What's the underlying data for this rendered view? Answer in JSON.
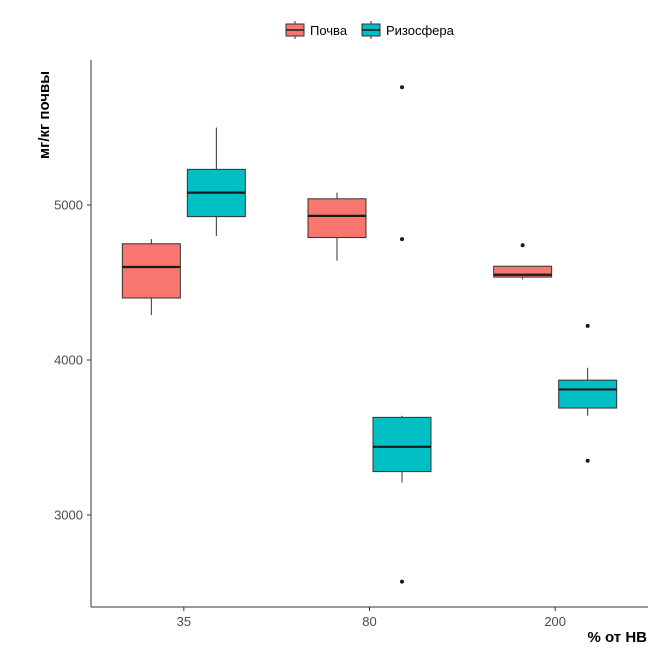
{
  "chart_data": {
    "type": "boxplot",
    "title": "",
    "xlabel": "% от НВ",
    "ylabel": "мг/кг почвы",
    "categories": [
      "35",
      "80",
      "200"
    ],
    "ylim": [
      2450,
      5850
    ],
    "yticks": [
      3000,
      4000,
      5000
    ],
    "grid": false,
    "legend_position": "top",
    "series": [
      {
        "name": "Почва",
        "color": "#F8766D",
        "boxes": [
          {
            "category": "35",
            "whisker_low": 4290,
            "q1": 4400,
            "median": 4600,
            "q3": 4750,
            "whisker_high": 4780,
            "outliers": []
          },
          {
            "category": "80",
            "whisker_low": 4640,
            "q1": 4790,
            "median": 4930,
            "q3": 5040,
            "whisker_high": 5080,
            "outliers": []
          },
          {
            "category": "200",
            "whisker_low": 4520,
            "q1": 4535,
            "median": 4550,
            "q3": 4605,
            "whisker_high": 4605,
            "outliers": [
              4740
            ]
          }
        ]
      },
      {
        "name": "Ризосфера",
        "color": "#00BFC4",
        "boxes": [
          {
            "category": "35",
            "whisker_low": 4800,
            "q1": 4925,
            "median": 5080,
            "q3": 5230,
            "whisker_high": 5500,
            "outliers": []
          },
          {
            "category": "80",
            "whisker_low": 3210,
            "q1": 3280,
            "median": 3440,
            "q3": 3630,
            "whisker_high": 3640,
            "outliers": [
              5760,
              4780,
              2570
            ]
          },
          {
            "category": "200",
            "whisker_low": 3640,
            "q1": 3690,
            "median": 3810,
            "q3": 3870,
            "whisker_high": 3950,
            "outliers": [
              4220,
              3350
            ]
          }
        ]
      }
    ]
  }
}
